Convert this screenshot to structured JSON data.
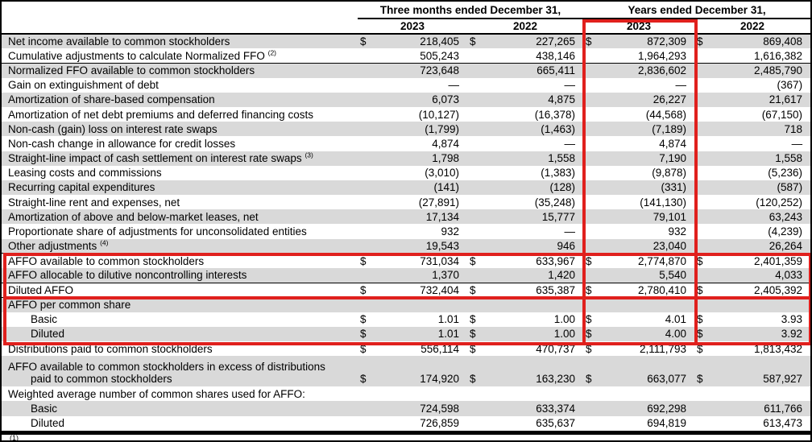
{
  "colors": {
    "highlight_red": "#e0201d",
    "row_shade": "#d9d9d9",
    "rule_black": "#000000"
  },
  "table": {
    "periods": [
      "Three months ended December 31,",
      "Years ended December 31,"
    ],
    "years": [
      "2023",
      "2022",
      "2023",
      "2022"
    ],
    "footnote_partial": "(1)",
    "rows": [
      {
        "label": "Net income available to common stockholders",
        "sup": "",
        "indent": 0,
        "dollar": true,
        "shaded": true,
        "rule_below": false,
        "two_line": false,
        "label2": "",
        "values": [
          "218,405",
          "227,265",
          "872,309",
          "869,408"
        ]
      },
      {
        "label": "Cumulative adjustments to calculate Normalized FFO",
        "sup": "(2)",
        "indent": 0,
        "dollar": false,
        "shaded": false,
        "rule_below": true,
        "two_line": false,
        "label2": "",
        "values": [
          "505,243",
          "438,146",
          "1,964,293",
          "1,616,382"
        ]
      },
      {
        "label": "Normalized FFO available to common stockholders",
        "sup": "",
        "indent": 0,
        "dollar": false,
        "shaded": true,
        "rule_below": false,
        "two_line": false,
        "label2": "",
        "values": [
          "723,648",
          "665,411",
          "2,836,602",
          "2,485,790"
        ]
      },
      {
        "label": "Gain on extinguishment of debt",
        "sup": "",
        "indent": 0,
        "dollar": false,
        "shaded": false,
        "rule_below": false,
        "two_line": false,
        "label2": "",
        "values": [
          "—",
          "—",
          "—",
          "(367)"
        ]
      },
      {
        "label": "Amortization of share-based compensation",
        "sup": "",
        "indent": 0,
        "dollar": false,
        "shaded": true,
        "rule_below": false,
        "two_line": false,
        "label2": "",
        "values": [
          "6,073",
          "4,875",
          "26,227",
          "21,617"
        ]
      },
      {
        "label": "Amortization of net debt premiums and deferred financing costs",
        "sup": "",
        "indent": 0,
        "dollar": false,
        "shaded": false,
        "rule_below": false,
        "two_line": false,
        "label2": "",
        "values": [
          "(10,127)",
          "(16,378)",
          "(44,568)",
          "(67,150)"
        ]
      },
      {
        "label": "Non-cash (gain) loss on interest rate swaps",
        "sup": "",
        "indent": 0,
        "dollar": false,
        "shaded": true,
        "rule_below": false,
        "two_line": false,
        "label2": "",
        "values": [
          "(1,799)",
          "(1,463)",
          "(7,189)",
          "718"
        ]
      },
      {
        "label": "Non-cash change in allowance for credit losses",
        "sup": "",
        "indent": 0,
        "dollar": false,
        "shaded": false,
        "rule_below": false,
        "two_line": false,
        "label2": "",
        "values": [
          "4,874",
          "—",
          "4,874",
          "—"
        ]
      },
      {
        "label": "Straight-line impact of cash settlement on interest rate swaps",
        "sup": "(3)",
        "indent": 0,
        "dollar": false,
        "shaded": true,
        "rule_below": false,
        "two_line": false,
        "label2": "",
        "values": [
          "1,798",
          "1,558",
          "7,190",
          "1,558"
        ]
      },
      {
        "label": "Leasing costs and commissions",
        "sup": "",
        "indent": 0,
        "dollar": false,
        "shaded": false,
        "rule_below": false,
        "two_line": false,
        "label2": "",
        "values": [
          "(3,010)",
          "(1,383)",
          "(9,878)",
          "(5,236)"
        ]
      },
      {
        "label": "Recurring capital expenditures",
        "sup": "",
        "indent": 0,
        "dollar": false,
        "shaded": true,
        "rule_below": false,
        "two_line": false,
        "label2": "",
        "values": [
          "(141)",
          "(128)",
          "(331)",
          "(587)"
        ]
      },
      {
        "label": "Straight-line rent and expenses, net",
        "sup": "",
        "indent": 0,
        "dollar": false,
        "shaded": false,
        "rule_below": false,
        "two_line": false,
        "label2": "",
        "values": [
          "(27,891)",
          "(35,248)",
          "(141,130)",
          "(120,252)"
        ]
      },
      {
        "label": "Amortization of above and below-market leases, net",
        "sup": "",
        "indent": 0,
        "dollar": false,
        "shaded": true,
        "rule_below": false,
        "two_line": false,
        "label2": "",
        "values": [
          "17,134",
          "15,777",
          "79,101",
          "63,243"
        ]
      },
      {
        "label": "Proportionate share of adjustments for unconsolidated entities",
        "sup": "",
        "indent": 0,
        "dollar": false,
        "shaded": false,
        "rule_below": false,
        "two_line": false,
        "label2": "",
        "values": [
          "932",
          "—",
          "932",
          "(4,239)"
        ]
      },
      {
        "label": "Other adjustments",
        "sup": "(4)",
        "indent": 0,
        "dollar": false,
        "shaded": true,
        "rule_below": true,
        "two_line": false,
        "label2": "",
        "values": [
          "19,543",
          "946",
          "23,040",
          "26,264"
        ]
      },
      {
        "label": "AFFO available to common stockholders",
        "sup": "",
        "indent": 0,
        "dollar": true,
        "shaded": false,
        "rule_below": false,
        "two_line": false,
        "label2": "",
        "values": [
          "731,034",
          "633,967",
          "2,774,870",
          "2,401,359"
        ]
      },
      {
        "label": "AFFO allocable to dilutive noncontrolling interests",
        "sup": "",
        "indent": 0,
        "dollar": false,
        "shaded": true,
        "rule_below": true,
        "two_line": false,
        "label2": "",
        "values": [
          "1,370",
          "1,420",
          "5,540",
          "4,033"
        ]
      },
      {
        "label": "Diluted AFFO",
        "sup": "",
        "indent": 0,
        "dollar": true,
        "shaded": false,
        "rule_below": true,
        "two_line": false,
        "label2": "",
        "values": [
          "732,404",
          "635,387",
          "2,780,410",
          "2,405,392"
        ]
      },
      {
        "label": "AFFO per common share",
        "sup": "",
        "indent": 0,
        "dollar": false,
        "shaded": true,
        "rule_below": false,
        "two_line": false,
        "label2": "",
        "values": [
          "",
          "",
          "",
          ""
        ]
      },
      {
        "label": "Basic",
        "sup": "",
        "indent": 1,
        "dollar": true,
        "shaded": false,
        "rule_below": false,
        "two_line": false,
        "label2": "",
        "values": [
          "1.01",
          "1.00",
          "4.01",
          "3.93"
        ]
      },
      {
        "label": "Diluted",
        "sup": "",
        "indent": 1,
        "dollar": true,
        "shaded": true,
        "rule_below": false,
        "two_line": false,
        "label2": "",
        "values": [
          "1.01",
          "1.00",
          "4.00",
          "3.92"
        ]
      },
      {
        "label": "Distributions paid to common stockholders",
        "sup": "",
        "indent": 0,
        "dollar": true,
        "shaded": false,
        "rule_below": false,
        "two_line": false,
        "label2": "",
        "values": [
          "556,114",
          "470,737",
          "2,111,793",
          "1,813,432"
        ]
      },
      {
        "label": "AFFO available to common stockholders in excess of distributions",
        "sup": "",
        "indent": 0,
        "dollar": true,
        "shaded": true,
        "rule_below": false,
        "two_line": true,
        "label2": "paid to common stockholders",
        "values": [
          "174,920",
          "163,230",
          "663,077",
          "587,927"
        ]
      },
      {
        "label": "Weighted average number of common shares used for AFFO:",
        "sup": "",
        "indent": 0,
        "dollar": false,
        "shaded": false,
        "rule_below": false,
        "two_line": false,
        "label2": "",
        "values": [
          "",
          "",
          "",
          ""
        ]
      },
      {
        "label": "Basic",
        "sup": "",
        "indent": 1,
        "dollar": false,
        "shaded": true,
        "rule_below": false,
        "two_line": false,
        "label2": "",
        "values": [
          "724,598",
          "633,374",
          "692,298",
          "611,766"
        ]
      },
      {
        "label": "Diluted",
        "sup": "",
        "indent": 1,
        "dollar": false,
        "shaded": false,
        "rule_below": false,
        "two_line": false,
        "label2": "",
        "values": [
          "726,859",
          "635,637",
          "694,819",
          "613,473"
        ]
      }
    ]
  }
}
